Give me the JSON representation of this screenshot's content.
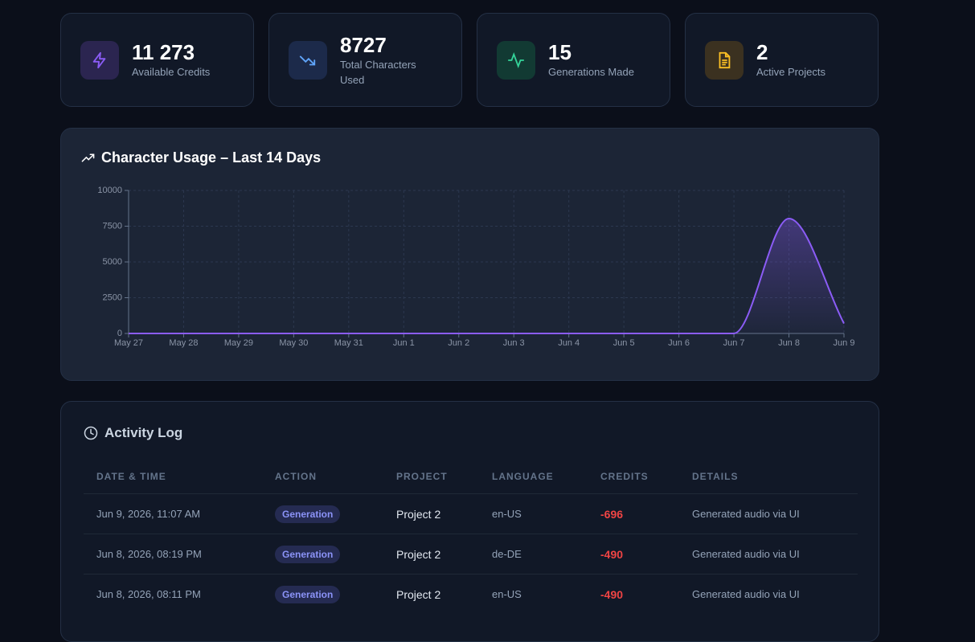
{
  "stats": [
    {
      "value": "11 273",
      "label": "Available Credits"
    },
    {
      "value": "8727",
      "label": "Total Characters Used"
    },
    {
      "value": "15",
      "label": "Generations Made"
    },
    {
      "value": "2",
      "label": "Active Projects"
    }
  ],
  "chart_data": {
    "type": "area",
    "title": "Character Usage – Last 14 Days",
    "categories": [
      "May 27",
      "May 28",
      "May 29",
      "May 30",
      "May 31",
      "Jun 1",
      "Jun 2",
      "Jun 3",
      "Jun 4",
      "Jun 5",
      "Jun 6",
      "Jun 7",
      "Jun 8",
      "Jun 9"
    ],
    "values": [
      0,
      0,
      0,
      0,
      0,
      0,
      0,
      0,
      0,
      0,
      0,
      0,
      8031,
      696
    ],
    "color": "#8b5cf6",
    "ylim": [
      0,
      10000
    ],
    "yticks": [
      0,
      2500,
      5000,
      7500,
      10000
    ],
    "grid": true
  },
  "activity": {
    "title": "Activity Log",
    "headers": [
      "DATE & TIME",
      "ACTION",
      "PROJECT",
      "LANGUAGE",
      "CREDITS",
      "DETAILS"
    ],
    "rows": [
      [
        "Jun 9, 2026, 11:07 AM",
        "Generation",
        "Project 2",
        "en-US",
        "-696",
        "Generated audio via UI"
      ],
      [
        "Jun 8, 2026, 08:19 PM",
        "Generation",
        "Project 2",
        "de-DE",
        "-490",
        "Generated audio via UI"
      ],
      [
        "Jun 8, 2026, 08:11 PM",
        "Generation",
        "Project 2",
        "en-US",
        "-490",
        "Generated audio via UI"
      ]
    ]
  }
}
